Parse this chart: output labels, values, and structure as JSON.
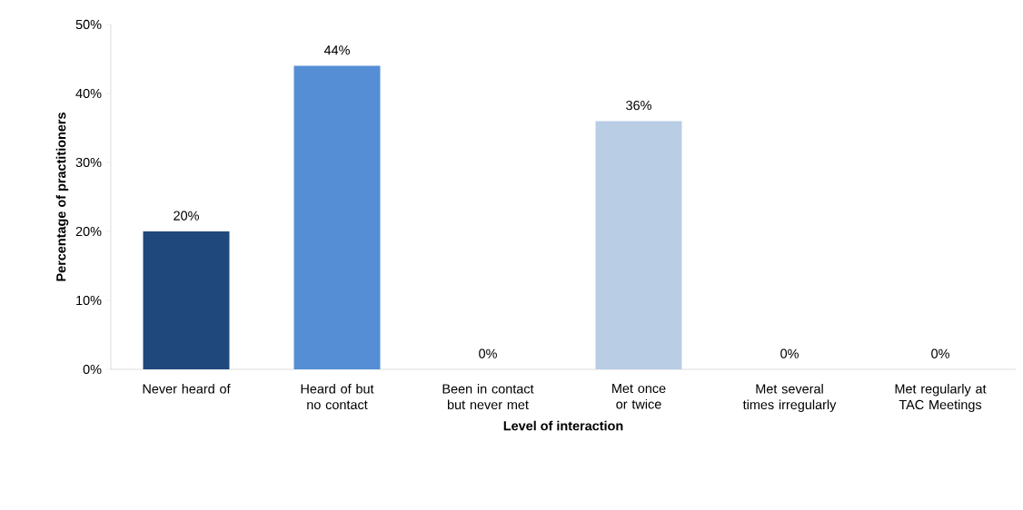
{
  "chart_data": {
    "type": "bar",
    "xlabel": "Level of interaction",
    "ylabel": "Percentage of practitioners",
    "categories": [
      "Never heard of",
      "Heard of but no contact",
      "Been in contact but never met",
      "Met once or twice",
      "Met several times irregularly",
      "Met regularly at TAC Meetings"
    ],
    "values": [
      20,
      44,
      0,
      36,
      0,
      0
    ],
    "value_labels": [
      "20%",
      "44%",
      "0%",
      "36%",
      "0%",
      "0%"
    ],
    "colors": [
      "#1f497d",
      "#558ed5",
      "#8eb4e3",
      "#b9cde5",
      "#c6d9f1",
      "#dbe5f1"
    ],
    "ylim": [
      0,
      50
    ],
    "yticks": [
      {
        "value": 0,
        "label": "0%"
      },
      {
        "value": 10,
        "label": "10%"
      },
      {
        "value": 20,
        "label": "20%"
      },
      {
        "value": 30,
        "label": "30%"
      },
      {
        "value": 40,
        "label": "40%"
      },
      {
        "value": 50,
        "label": "50%"
      }
    ],
    "grid": false
  }
}
